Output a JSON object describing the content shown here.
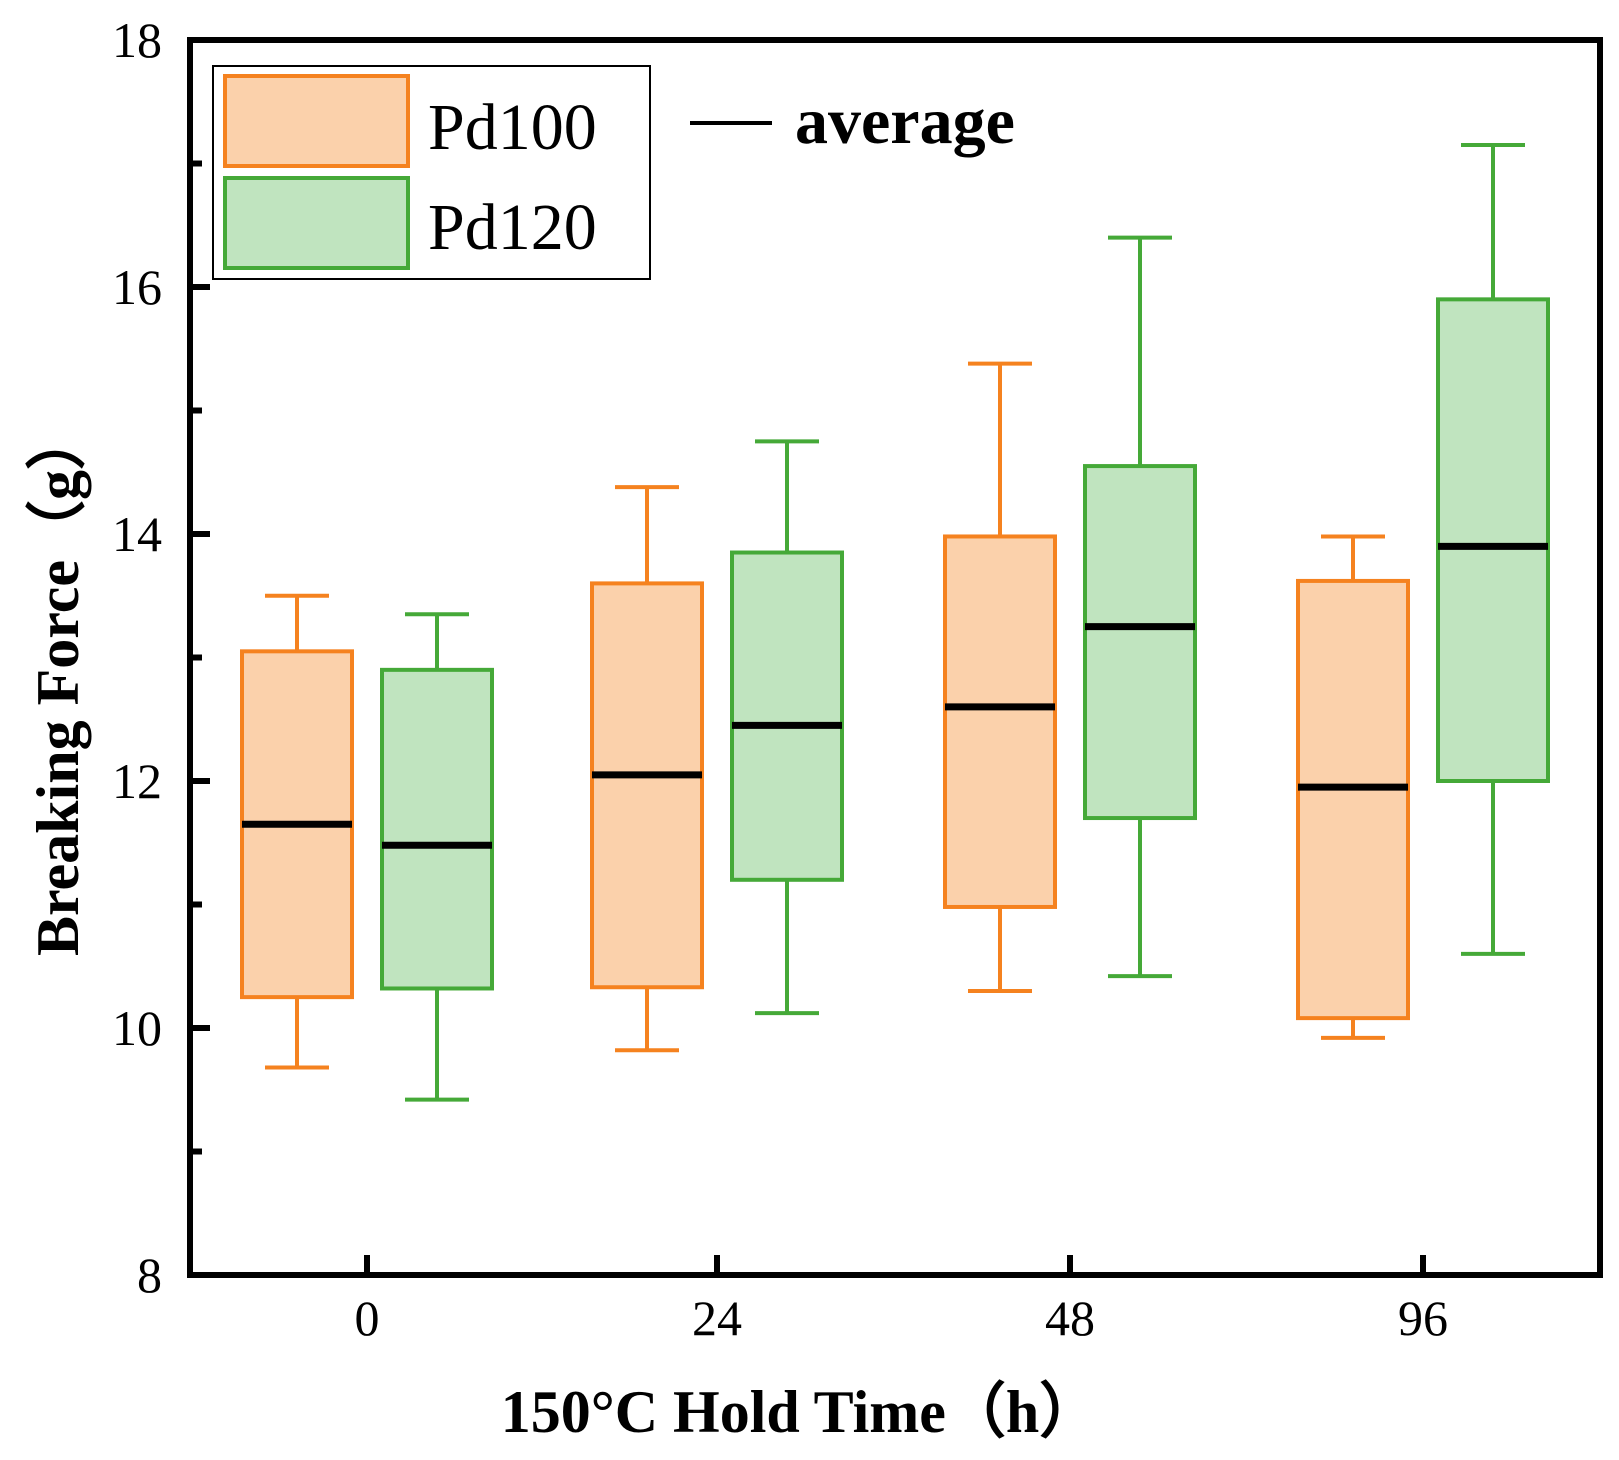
{
  "chart_data": {
    "type": "box",
    "title": "",
    "xlabel": "150°C Hold Time（h）",
    "ylabel": "Breaking Force（g）",
    "ylim": [
      8,
      18
    ],
    "yticks": [
      "8",
      "10",
      "12",
      "14",
      "16",
      "18"
    ],
    "categories": [
      "0",
      "24",
      "48",
      "96"
    ],
    "series": [
      {
        "name": "Pd100",
        "color": "#f5821f",
        "fill": "#fbd1ab",
        "boxes": [
          {
            "whisker_low": 9.68,
            "q1": 10.25,
            "average": 11.65,
            "q3": 13.05,
            "whisker_high": 13.5
          },
          {
            "whisker_low": 9.82,
            "q1": 10.33,
            "average": 12.05,
            "q3": 13.6,
            "whisker_high": 14.38
          },
          {
            "whisker_low": 10.3,
            "q1": 10.98,
            "average": 12.6,
            "q3": 13.98,
            "whisker_high": 15.38
          },
          {
            "whisker_low": 9.92,
            "q1": 10.08,
            "average": 11.95,
            "q3": 13.62,
            "whisker_high": 13.98
          }
        ]
      },
      {
        "name": "Pd120",
        "color": "#45a938",
        "fill": "#c0e4bf",
        "boxes": [
          {
            "whisker_low": 9.42,
            "q1": 10.32,
            "average": 11.48,
            "q3": 12.9,
            "whisker_high": 13.35
          },
          {
            "whisker_low": 10.12,
            "q1": 11.2,
            "average": 12.45,
            "q3": 13.85,
            "whisker_high": 14.75
          },
          {
            "whisker_low": 10.42,
            "q1": 11.7,
            "average": 13.25,
            "q3": 14.55,
            "whisker_high": 16.4
          },
          {
            "whisker_low": 10.6,
            "q1": 12.0,
            "average": 13.9,
            "q3": 15.9,
            "whisker_high": 17.15
          }
        ]
      }
    ],
    "legend": {
      "entries": [
        "Pd100",
        "Pd120"
      ],
      "average_label": "average",
      "placement": "top-left"
    }
  }
}
